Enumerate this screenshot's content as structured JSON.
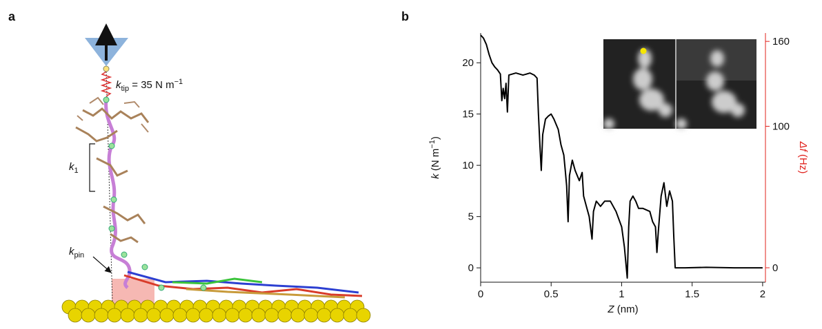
{
  "panel_labels": [
    "a",
    "b"
  ],
  "schematic": {
    "k_tip": {
      "symbol": "k",
      "subscript": "tip",
      "text": " = 35 N m",
      "superscript": "−1"
    },
    "k_1": {
      "symbol": "k",
      "subscript": "1"
    },
    "k_pin": {
      "symbol": "k",
      "subscript": "pin"
    }
  },
  "chart_data": {
    "type": "line",
    "x_label": {
      "symbol": "Z",
      "text": " (nm)"
    },
    "y_label": {
      "symbol": "k",
      "text": " (N m",
      "superscript": "−1",
      "close": ")"
    },
    "y2_label": {
      "symbol": "Δf",
      "text": " (Hz)"
    },
    "x": [
      0,
      0.02,
      0.04,
      0.06,
      0.08,
      0.1,
      0.12,
      0.14,
      0.15,
      0.16,
      0.17,
      0.18,
      0.19,
      0.2,
      0.25,
      0.3,
      0.35,
      0.38,
      0.4,
      0.41,
      0.42,
      0.43,
      0.44,
      0.46,
      0.48,
      0.5,
      0.52,
      0.55,
      0.57,
      0.59,
      0.6,
      0.61,
      0.62,
      0.63,
      0.65,
      0.67,
      0.7,
      0.72,
      0.73,
      0.75,
      0.77,
      0.79,
      0.8,
      0.82,
      0.85,
      0.88,
      0.92,
      0.96,
      1.0,
      1.02,
      1.04,
      1.05,
      1.06,
      1.08,
      1.1,
      1.12,
      1.15,
      1.2,
      1.22,
      1.24,
      1.25,
      1.26,
      1.28,
      1.3,
      1.32,
      1.34,
      1.36,
      1.37,
      1.38,
      1.45,
      1.6,
      1.8,
      2.0
    ],
    "series": [
      {
        "color": "#000000",
        "values": [
          22.7,
          22.4,
          21.8,
          20.8,
          20.0,
          19.6,
          19.3,
          18.9,
          16.3,
          17.5,
          16.5,
          18.0,
          15.2,
          18.8,
          19.0,
          18.8,
          19.0,
          18.8,
          18.5,
          15.0,
          12.0,
          9.5,
          13.0,
          14.5,
          14.8,
          15.0,
          14.5,
          13.5,
          12.0,
          11.0,
          9.5,
          8.0,
          4.5,
          9.0,
          10.5,
          9.5,
          8.5,
          9.3,
          7.0,
          6.0,
          5.0,
          2.8,
          5.5,
          6.5,
          6.0,
          6.5,
          6.5,
          5.5,
          4.0,
          2.0,
          -1.0,
          4.0,
          6.5,
          7.0,
          6.5,
          5.8,
          5.8,
          5.5,
          4.5,
          4.0,
          1.5,
          3.5,
          7.0,
          8.3,
          6.0,
          7.5,
          6.5,
          3.0,
          0.0,
          0.0,
          0.05,
          0.0,
          0.0
        ]
      }
    ],
    "xlim": [
      0,
      2.02
    ],
    "ylim": [
      -1.4,
      22.9
    ],
    "y2lim": [
      -10.2,
      165.9
    ],
    "xticks": [
      0,
      0.5,
      1,
      1.5,
      2
    ],
    "yticks": [
      0,
      5,
      10,
      15,
      20
    ],
    "y2ticks": [
      0,
      100,
      160
    ],
    "y2_color": "#e0201b"
  }
}
